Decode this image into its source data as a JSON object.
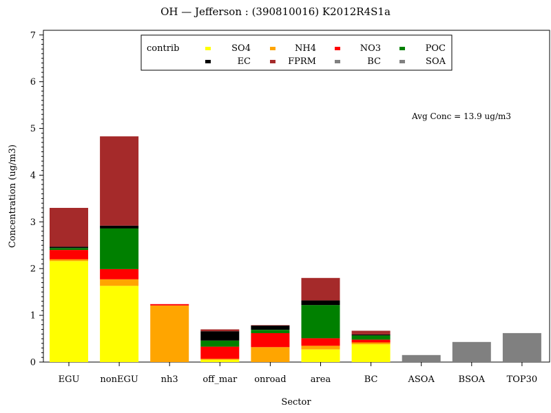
{
  "chart_data": {
    "type": "bar",
    "stacked": true,
    "title": "OH — Jefferson : (390810016) K2012R4S1a",
    "xlabel": "Sector",
    "ylabel": "Concentration (ug/m3)",
    "ylim": [
      0,
      7.1
    ],
    "yticks": [
      "0",
      "1",
      "2",
      "3",
      "4",
      "5",
      "6",
      "7"
    ],
    "grid": false,
    "legend": {
      "title": "contrib",
      "placement": "top-center"
    },
    "annotation": "Avg Conc =  13.9 ug/m3",
    "categories": [
      "EGU",
      "nonEGU",
      "nh3",
      "off_mar",
      "onroad",
      "area",
      "BC",
      "ASOA",
      "BSOA",
      "TOP30"
    ],
    "series": [
      {
        "name": "SO4",
        "color": "#ffff00",
        "values": [
          2.16,
          1.63,
          0.0,
          0.05,
          0.0,
          0.27,
          0.38,
          0,
          0,
          0
        ]
      },
      {
        "name": "NH4",
        "color": "#ffa500",
        "values": [
          0.04,
          0.14,
          1.21,
          0.02,
          0.32,
          0.08,
          0.04,
          0,
          0,
          0
        ]
      },
      {
        "name": "NO3",
        "color": "#ff0000",
        "values": [
          0.2,
          0.22,
          0.03,
          0.26,
          0.3,
          0.16,
          0.06,
          0,
          0,
          0
        ]
      },
      {
        "name": "POC",
        "color": "#008000",
        "values": [
          0.04,
          0.87,
          0.0,
          0.13,
          0.07,
          0.71,
          0.09,
          0,
          0,
          0
        ]
      },
      {
        "name": "EC",
        "color": "#000000",
        "values": [
          0.03,
          0.06,
          0.0,
          0.2,
          0.09,
          0.1,
          0.02,
          0,
          0,
          0
        ]
      },
      {
        "name": "FPRM",
        "color": "#a52a2a",
        "values": [
          0.83,
          1.91,
          0.0,
          0.04,
          0.01,
          0.48,
          0.08,
          0,
          0,
          0
        ]
      },
      {
        "name": "BC",
        "color": "#808080",
        "values": [
          0,
          0,
          0,
          0,
          0,
          0,
          0,
          0,
          0,
          0
        ]
      },
      {
        "name": "SOA",
        "color": "#808080",
        "values": [
          0,
          0,
          0,
          0,
          0,
          0,
          0,
          0.15,
          0.43,
          0.62
        ]
      }
    ]
  }
}
